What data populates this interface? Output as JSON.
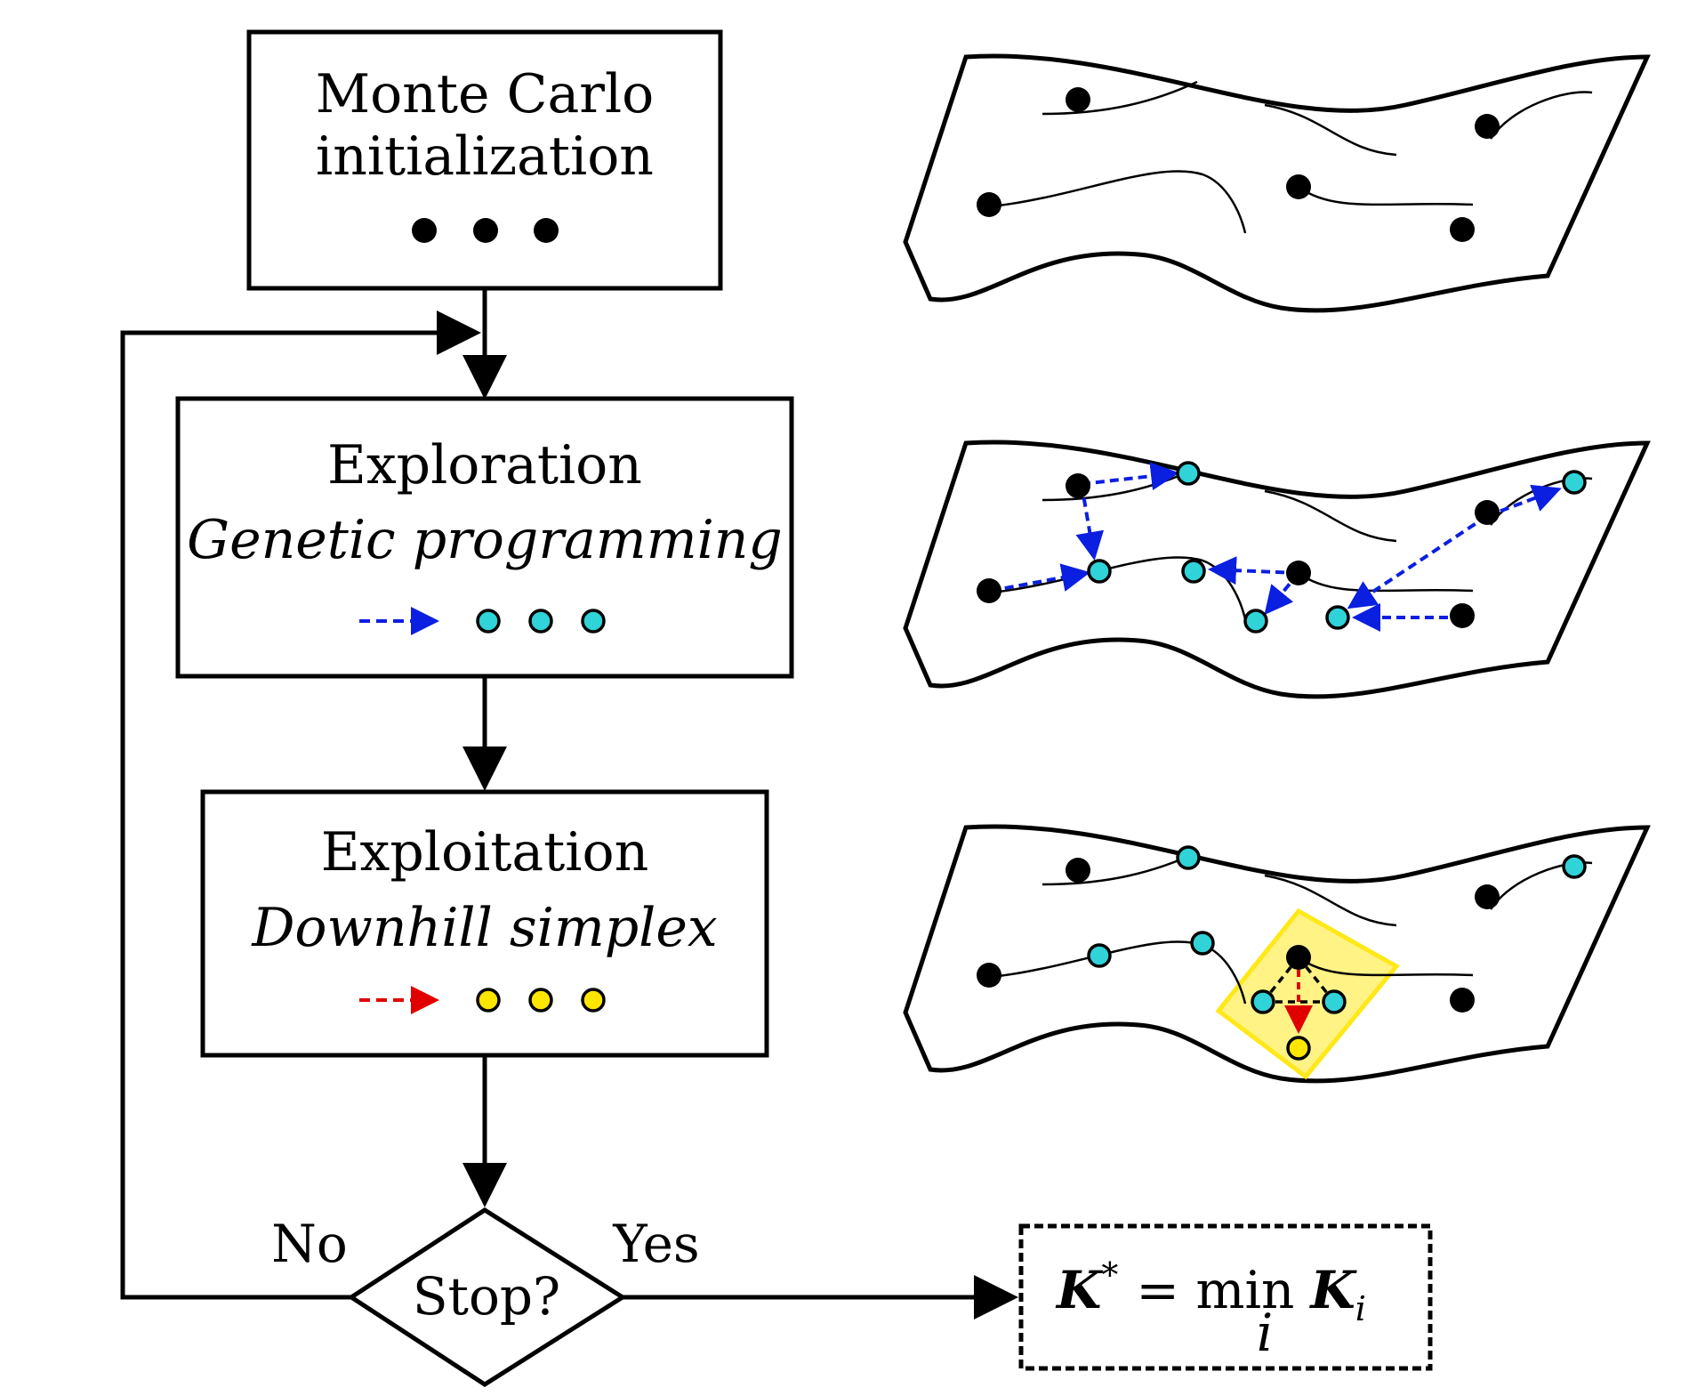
{
  "flowchart": {
    "init_box": {
      "line1": "Monte Carlo",
      "line2": "initialization"
    },
    "explore_box": {
      "title": "Exploration",
      "subtitle": "Genetic programming"
    },
    "exploit_box": {
      "title": "Exploitation",
      "subtitle": "Downhill simplex"
    },
    "decision": {
      "label": "Stop?",
      "no_label": "No",
      "yes_label": "Yes"
    },
    "result": {
      "symbol": "K",
      "superscript": "*",
      "operator": "= min",
      "index": "i",
      "symbol2": "K",
      "subscript": "i"
    }
  },
  "colors": {
    "black_point": "#000000",
    "explore_point": "#2fd3d8",
    "exploit_point": "#ffe600",
    "explore_arrow": "#0b1fe0",
    "exploit_arrow": "#e00000",
    "simplex_highlight": "#fff27a"
  }
}
